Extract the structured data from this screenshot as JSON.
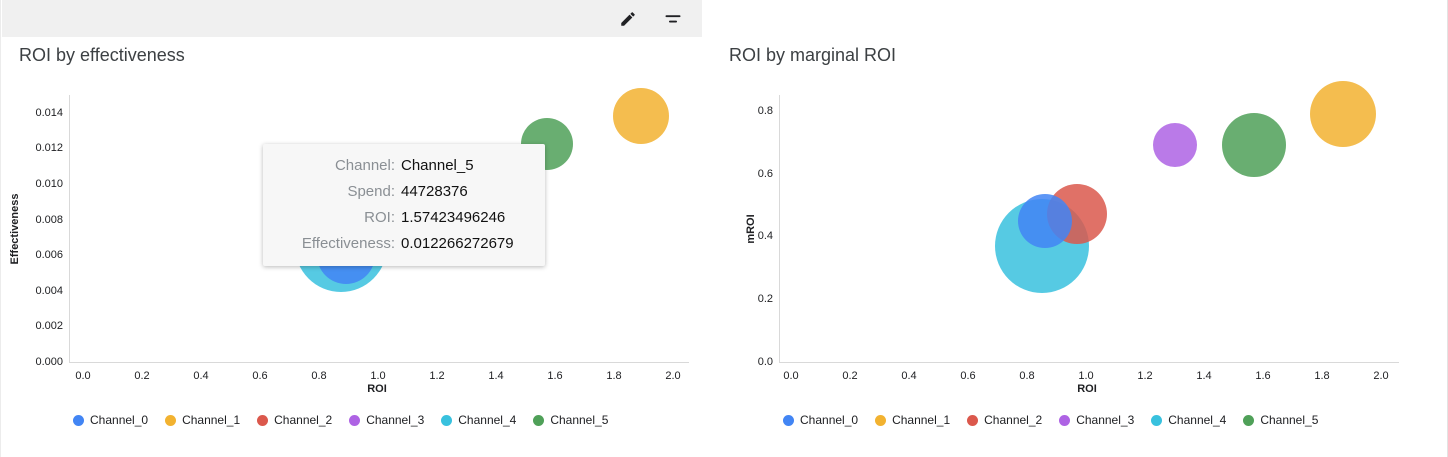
{
  "toolbar": {
    "buttons": [
      {
        "name": "edit",
        "icon": "edit-pencil-icon"
      },
      {
        "name": "filter",
        "icon": "filter-lines-icon"
      }
    ]
  },
  "tooltip": {
    "rows": [
      {
        "label": "Channel:",
        "value": "Channel_5"
      },
      {
        "label": "Spend:",
        "value": "44728376"
      },
      {
        "label": "ROI:",
        "value": "1.57423496246"
      },
      {
        "label": "Effectiveness:",
        "value": "0.012266272679"
      }
    ]
  },
  "chart_data": [
    {
      "type": "scatter",
      "title": "ROI by effectiveness",
      "xlabel": "ROI",
      "ylabel": "Effectiveness",
      "xlim": [
        0,
        2.0
      ],
      "ylim": [
        0,
        0.015
      ],
      "x_ticks": [
        "0.0",
        "0.2",
        "0.4",
        "0.6",
        "0.8",
        "1.0",
        "1.2",
        "1.4",
        "1.6",
        "1.8",
        "2.0"
      ],
      "y_ticks": [
        "0.000",
        "0.002",
        "0.004",
        "0.006",
        "0.008",
        "0.010",
        "0.012",
        "0.014"
      ],
      "grid": false,
      "legend_position": "bottom",
      "bubbles": [
        {
          "channel": "Channel_4",
          "x": 0.875,
          "y": 0.0065,
          "r": 46,
          "color": "#38C1DE"
        },
        {
          "channel": "Channel_0",
          "x": 0.89,
          "y": 0.006,
          "r": 29,
          "color": "#4285F4"
        },
        {
          "channel": "Channel_5",
          "x": 1.57423496246,
          "y": 0.012266272679,
          "r": 26,
          "color": "#4FA058"
        },
        {
          "channel": "Channel_1",
          "x": 1.89,
          "y": 0.0138,
          "r": 28,
          "color": "#F2B230"
        }
      ],
      "legend": [
        {
          "label": "Channel_0",
          "color": "#4285F4"
        },
        {
          "label": "Channel_1",
          "color": "#F2B230"
        },
        {
          "label": "Channel_2",
          "color": "#DB584C"
        },
        {
          "label": "Channel_3",
          "color": "#AE63E4"
        },
        {
          "label": "Channel_4",
          "color": "#38C1DE"
        },
        {
          "label": "Channel_5",
          "color": "#4FA058"
        }
      ]
    },
    {
      "type": "scatter",
      "title": "ROI by marginal ROI",
      "xlabel": "ROI",
      "ylabel": "mROI",
      "xlim": [
        0,
        2.0
      ],
      "ylim": [
        0,
        0.85
      ],
      "x_ticks": [
        "0.0",
        "0.2",
        "0.4",
        "0.6",
        "0.8",
        "1.0",
        "1.2",
        "1.4",
        "1.6",
        "1.8",
        "2.0"
      ],
      "y_ticks": [
        "0.0",
        "0.2",
        "0.4",
        "0.6",
        "0.8"
      ],
      "grid": false,
      "legend_position": "bottom",
      "bubbles": [
        {
          "channel": "Channel_4",
          "x": 0.85,
          "y": 0.37,
          "r": 47,
          "color": "#38C1DE"
        },
        {
          "channel": "Channel_2",
          "x": 0.97,
          "y": 0.47,
          "r": 30,
          "color": "#DB584C"
        },
        {
          "channel": "Channel_0",
          "x": 0.86,
          "y": 0.45,
          "r": 27,
          "color": "#4285F4"
        },
        {
          "channel": "Channel_3",
          "x": 1.3,
          "y": 0.69,
          "r": 22,
          "color": "#AE63E4"
        },
        {
          "channel": "Channel_5",
          "x": 1.57,
          "y": 0.69,
          "r": 32,
          "color": "#4FA058"
        },
        {
          "channel": "Channel_1",
          "x": 1.87,
          "y": 0.79,
          "r": 33,
          "color": "#F2B230"
        }
      ],
      "legend": [
        {
          "label": "Channel_0",
          "color": "#4285F4"
        },
        {
          "label": "Channel_1",
          "color": "#F2B230"
        },
        {
          "label": "Channel_2",
          "color": "#DB584C"
        },
        {
          "label": "Channel_3",
          "color": "#AE63E4"
        },
        {
          "label": "Channel_4",
          "color": "#38C1DE"
        },
        {
          "label": "Channel_5",
          "color": "#4FA058"
        }
      ]
    }
  ]
}
